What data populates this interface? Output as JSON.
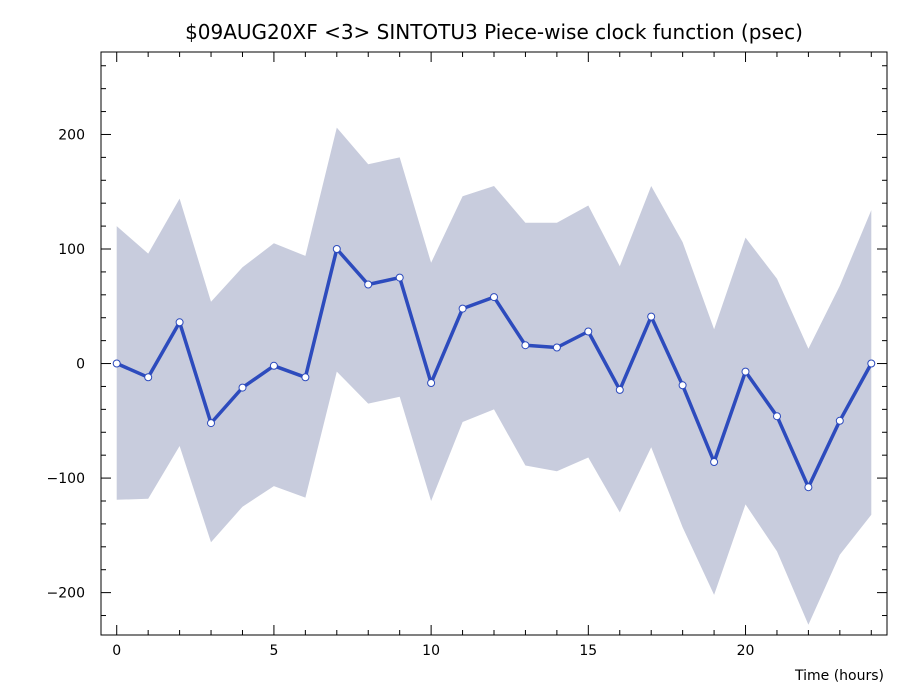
{
  "chart_data": {
    "type": "line",
    "title": "$09AUG20XF <3>  SINTOTU3  Piece-wise clock function (psec)",
    "xlabel": "Time (hours)",
    "ylabel": "",
    "xlim": [
      -0.5,
      24.5
    ],
    "ylim": [
      -237,
      272
    ],
    "x_ticks": [
      0,
      5,
      10,
      15,
      20
    ],
    "x_tick_labels": [
      "0",
      "5",
      "10",
      "15",
      "20"
    ],
    "y_ticks": [
      -200,
      -100,
      0,
      100,
      200
    ],
    "y_tick_labels": [
      "−200",
      "−100",
      "0",
      "100",
      "200"
    ],
    "x_minor_step": 1,
    "y_minor_step": 20,
    "grid": false,
    "colors": {
      "line": "#2d4bbd",
      "band": "#c8ccdd",
      "marker_fill": "#ffffff",
      "frame": "#000000"
    },
    "x": [
      0,
      1,
      2,
      3,
      4,
      5,
      6,
      7,
      8,
      9,
      10,
      11,
      12,
      13,
      14,
      15,
      16,
      17,
      18,
      19,
      20,
      21,
      22,
      23,
      24
    ],
    "series": [
      {
        "values": [
          0,
          -12,
          36,
          -52,
          -21,
          -2,
          -12,
          100,
          69,
          75,
          -17,
          48,
          58,
          16,
          14,
          28,
          -23,
          41,
          -19,
          -86,
          -7,
          -46,
          -108,
          -50,
          0
        ],
        "band_upper": [
          120,
          96,
          144,
          54,
          84,
          105,
          94,
          206,
          174,
          180,
          88,
          146,
          155,
          123,
          123,
          138,
          85,
          155,
          106,
          30,
          110,
          74,
          13,
          68,
          134
        ],
        "band_lower": [
          -119,
          -118,
          -72,
          -156,
          -125,
          -107,
          -117,
          -7,
          -35,
          -29,
          -120,
          -51,
          -40,
          -89,
          -94,
          -82,
          -130,
          -73,
          -143,
          -202,
          -123,
          -164,
          -228,
          -167,
          -132
        ]
      }
    ]
  }
}
